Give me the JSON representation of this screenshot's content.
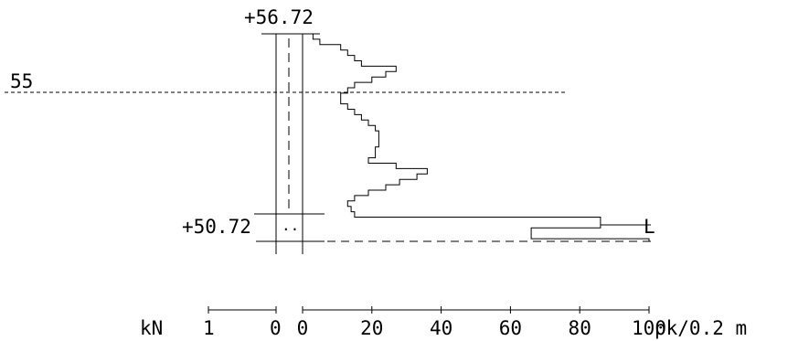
{
  "labels": {
    "top_elevation": "+56.72",
    "bottom_elevation": "+50.72",
    "water_level": "55",
    "stop_marker": "L",
    "base_symbol": ".."
  },
  "axis": {
    "left_unit": "kN",
    "left_ticks": [
      "1",
      "0"
    ],
    "right_ticks": [
      "0",
      "20",
      "40",
      "60",
      "80",
      "100"
    ],
    "right_unit": "pk/0.2 m"
  },
  "chart_data": {
    "type": "step",
    "xlabel": "pk/0.2 m",
    "xlim": [
      0,
      100
    ],
    "top_level": 56.72,
    "bottom_level": 50.72,
    "water_level": 55,
    "blow_counts_per_0_2m": [
      3,
      5,
      11,
      13,
      15,
      17,
      27,
      24,
      20,
      15,
      13,
      11,
      11,
      13,
      15,
      17,
      19,
      21,
      22,
      22,
      22,
      21,
      21,
      19,
      27,
      36,
      33,
      28,
      24,
      19,
      15,
      13,
      14,
      15,
      86,
      86,
      66,
      66,
      100
    ]
  }
}
